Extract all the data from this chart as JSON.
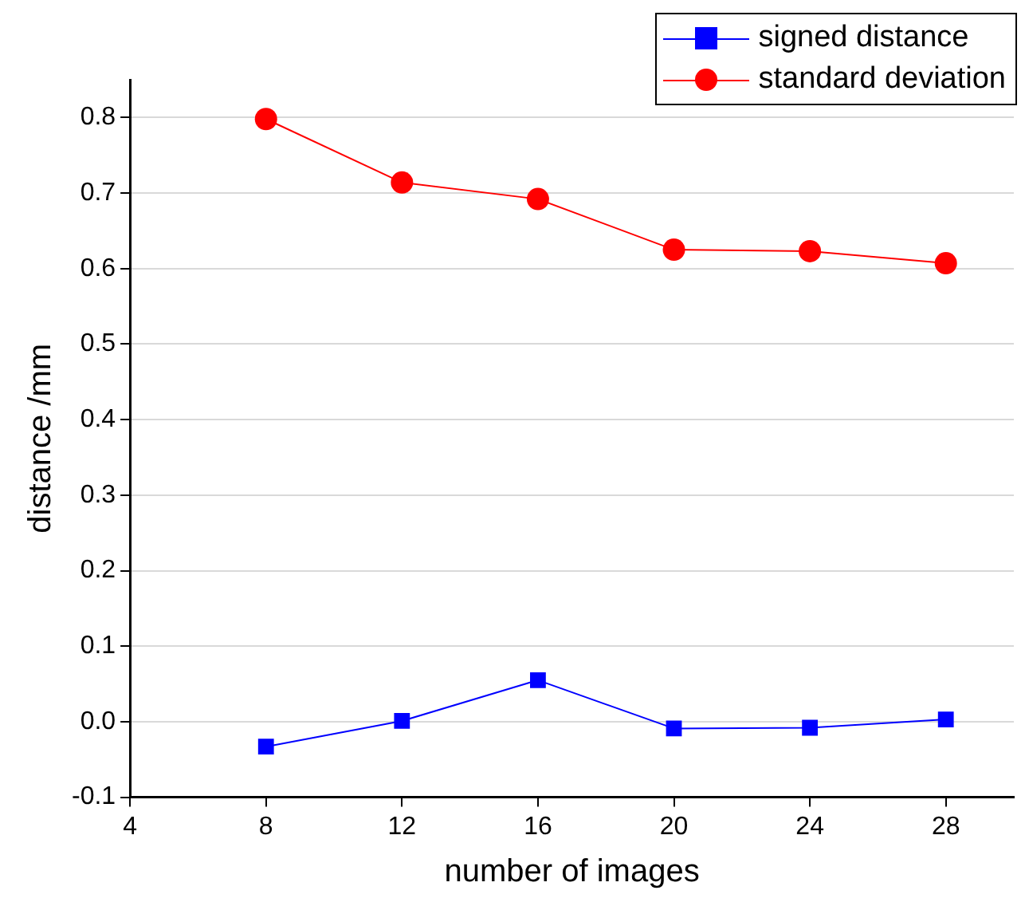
{
  "chart_data": {
    "type": "line",
    "xlabel": "number of images",
    "ylabel": "distance /mm",
    "x": [
      8,
      12,
      16,
      20,
      24,
      28
    ],
    "series": [
      {
        "name": "signed distance",
        "color": "#0000ff",
        "marker": "square",
        "values": [
          -0.033,
          0.001,
          0.055,
          -0.009,
          -0.008,
          0.003
        ]
      },
      {
        "name": "standard deviation",
        "color": "#ff0000",
        "marker": "circle",
        "values": [
          0.798,
          0.714,
          0.692,
          0.625,
          0.623,
          0.607
        ]
      }
    ],
    "xlim": [
      4,
      30
    ],
    "xticks": [
      4,
      8,
      12,
      16,
      20,
      24,
      28
    ],
    "ylim": [
      -0.1,
      0.85
    ],
    "yticks": [
      -0.1,
      {
        "value": 0,
        "label": "0.0"
      },
      0.1,
      0.2,
      0.3,
      0.4,
      0.5,
      0.6,
      0.7,
      0.8
    ],
    "grid": "y",
    "legend": "top right",
    "line_style": "solid"
  }
}
